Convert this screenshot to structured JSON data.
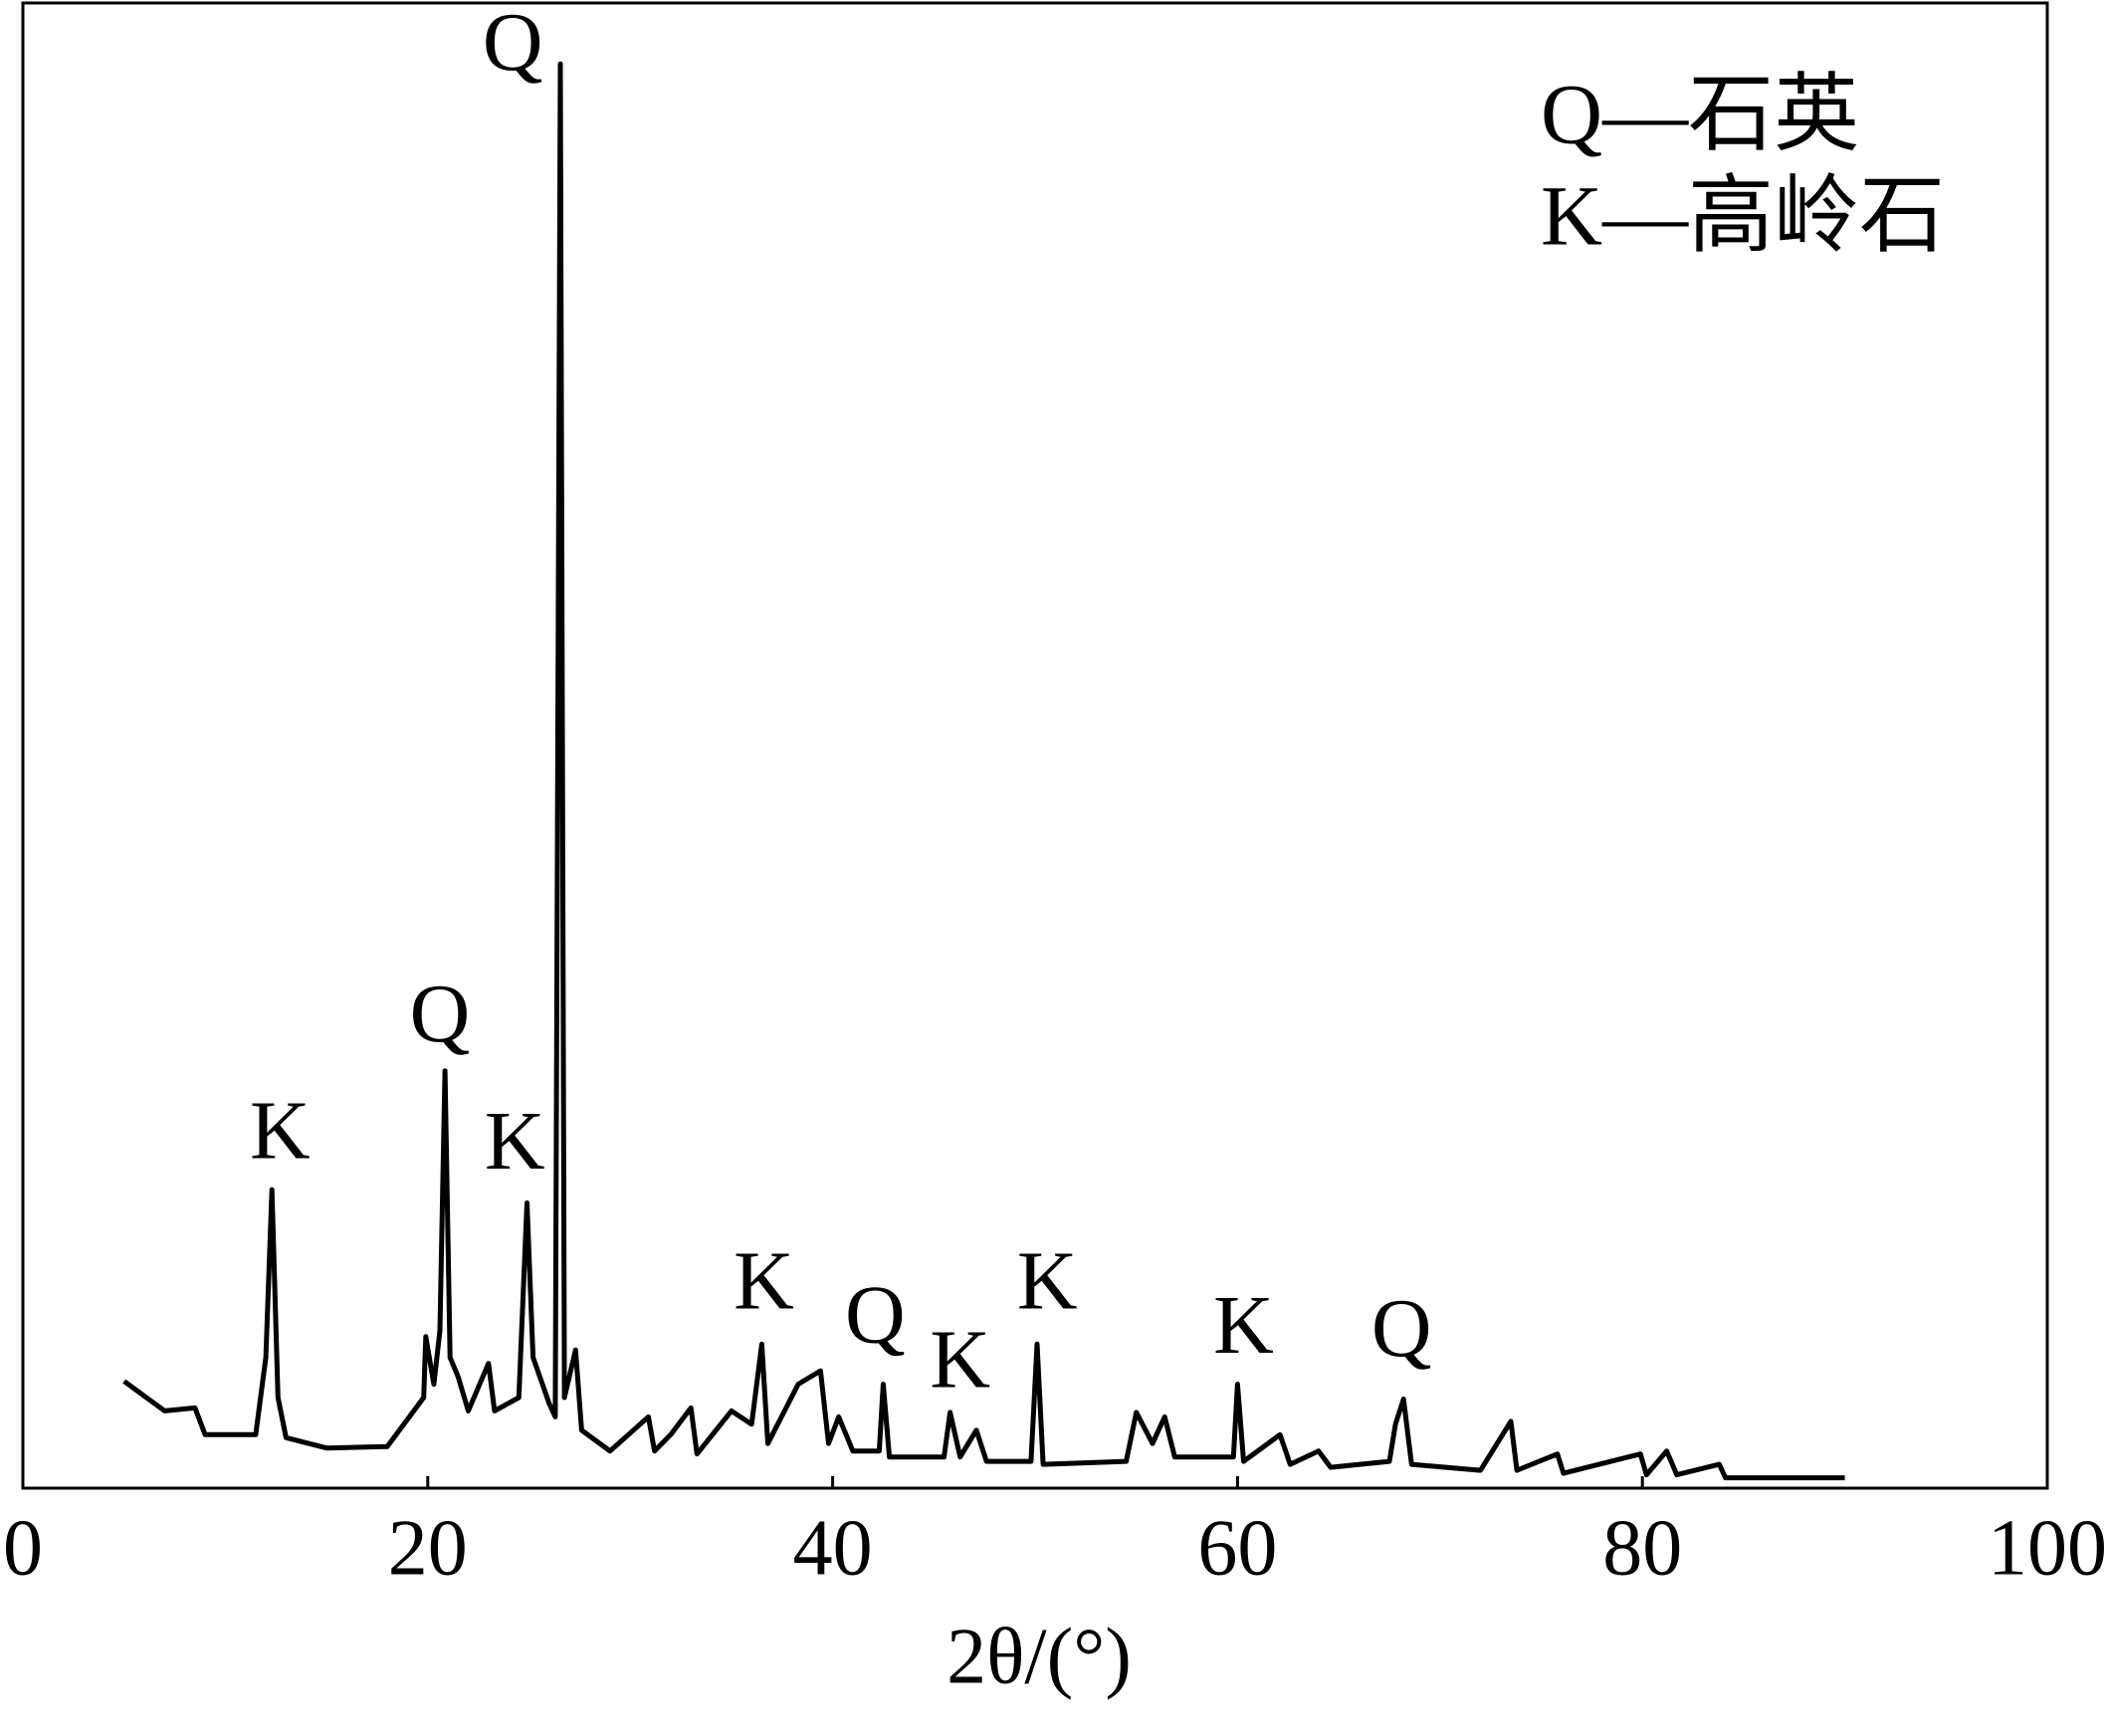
{
  "chart_data": {
    "type": "line",
    "xlabel": "2θ/(°)",
    "x": [
      5,
      7,
      8.5,
      9,
      11.5,
      12.0,
      12.3,
      12.6,
      13,
      15,
      18,
      19.8,
      19.9,
      20.3,
      20.6,
      20.85,
      21.1,
      21.5,
      22,
      23,
      23.3,
      24.5,
      24.9,
      25.2,
      26,
      26.3,
      26.55,
      26.75,
      27.3,
      27.6,
      29,
      30.9,
      31.2,
      32,
      33.0,
      33.3,
      35,
      36,
      36.5,
      36.8,
      38.3,
      39.4,
      39.8,
      40.3,
      41,
      42.3,
      42.5,
      42.8,
      45.5,
      45.8,
      46.3,
      47.1,
      47.6,
      49.8,
      50.1,
      50.4,
      54.5,
      55,
      55.8,
      56.4,
      56.9,
      59.8,
      60.0,
      60.3,
      62.1,
      62.6,
      64,
      64.6,
      67.5,
      67.8,
      68.2,
      68.6,
      72,
      73.5,
      73.8,
      75.8,
      76.1,
      79.9,
      80.2,
      81.2,
      81.7,
      83.8,
      84.1,
      90
    ],
    "series": [
      {
        "color": "#000000",
        "values": [
          7.2,
          5.2,
          5.4,
          3.6,
          3.6,
          8.8,
          20.1,
          6.1,
          3.4,
          2.7,
          2.8,
          6.1,
          10.2,
          7.0,
          10.6,
          28.1,
          8.8,
          7.5,
          5.2,
          8.4,
          5.2,
          6.1,
          19.2,
          8.8,
          5.7,
          4.8,
          95.9,
          6.1,
          9.3,
          3.9,
          2.5,
          4.8,
          2.5,
          3.6,
          5.4,
          2.3,
          5.2,
          4.3,
          9.7,
          3.0,
          7.0,
          7.9,
          3.0,
          4.8,
          2.5,
          2.5,
          7.0,
          2.1,
          2.1,
          5.1,
          2.1,
          3.9,
          1.8,
          1.8,
          9.7,
          1.6,
          1.8,
          5.1,
          3.0,
          4.8,
          2.1,
          2.1,
          7.0,
          1.8,
          3.6,
          1.6,
          2.5,
          1.4,
          1.8,
          4.3,
          6.0,
          1.6,
          1.2,
          4.5,
          1.2,
          2.3,
          1.0,
          2.3,
          0.9,
          2.5,
          0.9,
          1.6,
          0.7,
          0.7
        ]
      }
    ],
    "xlim": [
      0,
      100
    ],
    "xticks": [
      0,
      20,
      40,
      60,
      80,
      100
    ],
    "ylim": [
      0,
      100
    ],
    "annotations": [
      {
        "text": "Q",
        "x": 24.2,
        "y": 96.8
      },
      {
        "text": "K",
        "x": 12.7,
        "y": 23.5
      },
      {
        "text": "Q",
        "x": 20.6,
        "y": 31.4
      },
      {
        "text": "K",
        "x": 24.3,
        "y": 22.8
      },
      {
        "text": "K",
        "x": 36.6,
        "y": 13.4
      },
      {
        "text": "Q",
        "x": 42.1,
        "y": 11.1
      },
      {
        "text": "K",
        "x": 46.3,
        "y": 8.1
      },
      {
        "text": "K",
        "x": 50.6,
        "y": 13.4
      },
      {
        "text": "K",
        "x": 60.3,
        "y": 10.4
      },
      {
        "text": "Q",
        "x": 68.1,
        "y": 10.2
      }
    ],
    "legend_text": [
      "Q—石英",
      "K—高岭石"
    ]
  }
}
